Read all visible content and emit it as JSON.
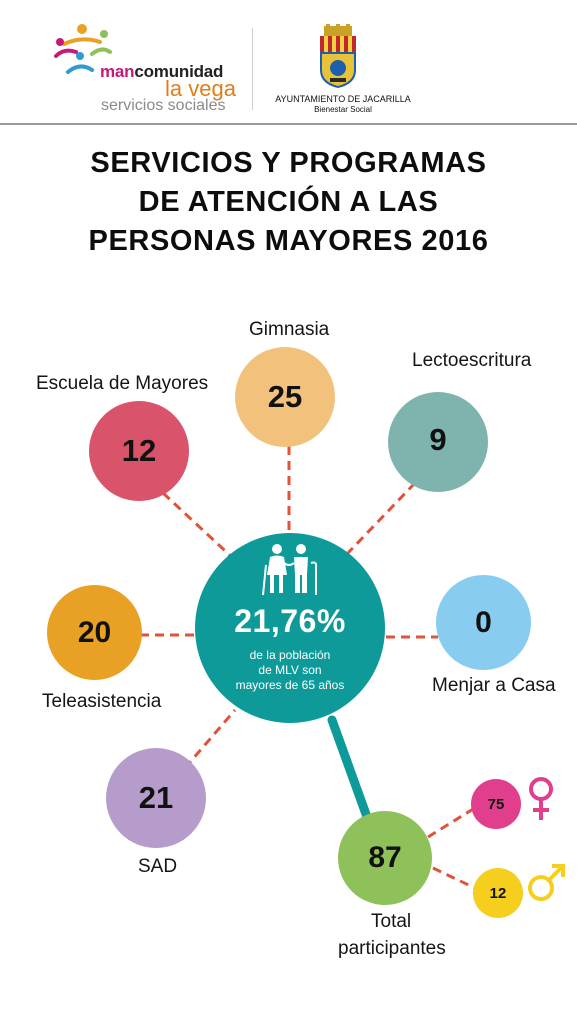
{
  "header": {
    "logo_left": {
      "prefix": "man",
      "suffix": "comunidad",
      "line2": "la vega",
      "line3": "servicios sociales"
    },
    "logo_right": {
      "line1": "AYUNTAMIENTO DE JACARILLA",
      "line2": "Bienestar Social"
    }
  },
  "title": [
    "SERVICIOS Y PROGRAMAS",
    "DE ATENCIÓN A LAS",
    "PERSONAS MAYORES 2016"
  ],
  "center": {
    "percent": "21,76%",
    "description": [
      "de la población",
      "de MLV son",
      "mayores de 65 años"
    ]
  },
  "programs": [
    {
      "label": "Escuela de Mayores",
      "value": "12",
      "color": "#d9546a"
    },
    {
      "label": "Gimnasia",
      "value": "25",
      "color": "#f2c27d"
    },
    {
      "label": "Lectoescritura",
      "value": "9",
      "color": "#7fb4ae"
    },
    {
      "label": "Teleasistencia",
      "value": "20",
      "color": "#e8a125"
    },
    {
      "label": "Menjar a Casa",
      "value": "0",
      "color": "#88cdf0"
    },
    {
      "label": "SAD",
      "value": "21",
      "color": "#b69ccb"
    }
  ],
  "total": {
    "label_lines": [
      "Total",
      "participantes"
    ],
    "value": "87",
    "color": "#8fc15a",
    "female": {
      "value": "75",
      "color": "#e13f8e",
      "icon": "female-symbol-icon"
    },
    "male": {
      "value": "12",
      "color": "#f6cf1e",
      "icon": "male-symbol-icon"
    }
  },
  "colors": {
    "hub": "#0f9a9a",
    "connector": "#e0523a"
  }
}
